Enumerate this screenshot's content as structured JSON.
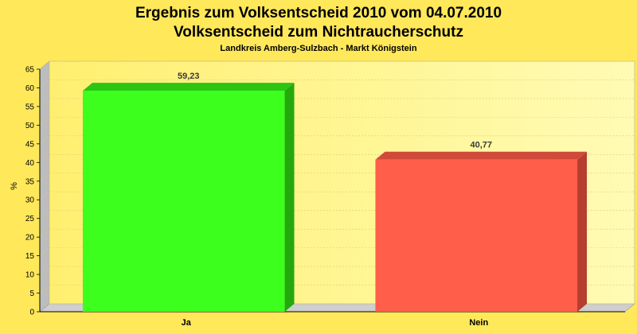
{
  "chart_data": {
    "type": "bar",
    "title": "Ergebnis zum Volksentscheid 2010 vom 04.07.2010",
    "title2": "Volksentscheid zum Nichtraucherschutz",
    "subtitle": "Landkreis Amberg-Sulzbach - Markt Königstein",
    "xlabel": "",
    "ylabel": "%",
    "categories": [
      "Ja",
      "Nein"
    ],
    "values": [
      59.23,
      40.77
    ],
    "value_labels": [
      "59,23",
      "40,77"
    ],
    "ylim": [
      0,
      65
    ],
    "yticks": [
      0,
      5,
      10,
      15,
      20,
      25,
      30,
      35,
      40,
      45,
      50,
      55,
      60,
      65
    ],
    "grid": true,
    "legend": "none",
    "colors": {
      "background": "#ffe85a",
      "plot_light": "#fffbb0",
      "bar_ja": "#3cff1e",
      "bar_nein": "#ff5e4a",
      "gridline": "#d8cf7a"
    }
  }
}
